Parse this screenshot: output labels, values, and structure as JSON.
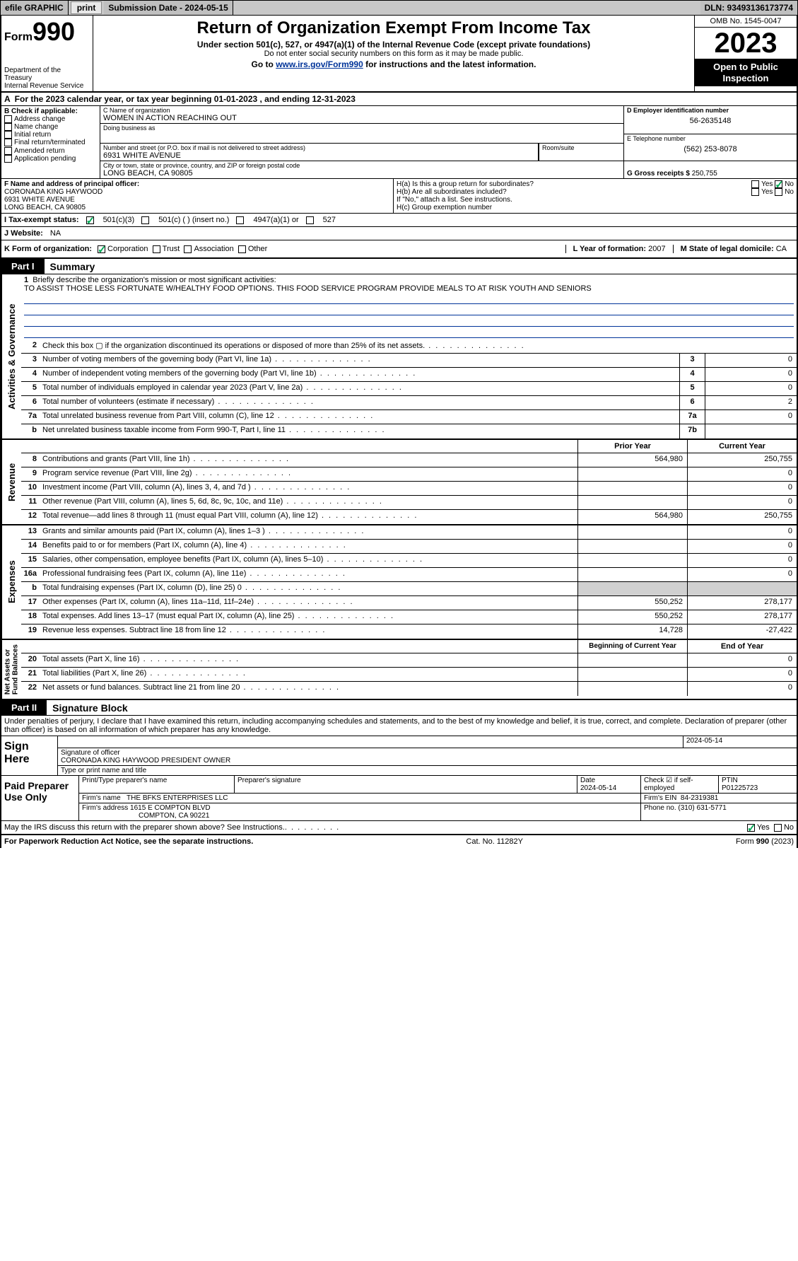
{
  "topbar": {
    "efile": "efile GRAPHIC",
    "print": "print",
    "sub_label": "Submission Date - 2024-05-15",
    "dln": "DLN: 93493136173774"
  },
  "header": {
    "form_word": "Form",
    "form_num": "990",
    "dept": "Department of the Treasury\nInternal Revenue Service",
    "title": "Return of Organization Exempt From Income Tax",
    "sub1": "Under section 501(c), 527, or 4947(a)(1) of the Internal Revenue Code (except private foundations)",
    "sub2": "Do not enter social security numbers on this form as it may be made public.",
    "sub3_pre": "Go to ",
    "sub3_link": "www.irs.gov/Form990",
    "sub3_post": " for instructions and the latest information.",
    "omb": "OMB No. 1545-0047",
    "year": "2023",
    "openpub": "Open to Public\nInspection"
  },
  "A": {
    "text": "For the 2023 calendar year, or tax year beginning 01-01-2023    , and ending 12-31-2023",
    "label": "A"
  },
  "B": {
    "label": "B Check if applicable:",
    "items": [
      "Address change",
      "Name change",
      "Initial return",
      "Final return/terminated",
      "Amended return",
      "Application pending"
    ]
  },
  "C": {
    "label": "C Name of organization",
    "name": "WOMEN IN ACTION REACHING OUT",
    "dba_label": "Doing business as",
    "dba": "",
    "street_label": "Number and street (or P.O. box if mail is not delivered to street address)",
    "street": "6931 WHITE AVENUE",
    "room_label": "Room/suite",
    "room": "",
    "city_label": "City or town, state or province, country, and ZIP or foreign postal code",
    "city": "LONG BEACH, CA  90805"
  },
  "D": {
    "label": "D Employer identification number",
    "ein": "56-2635148"
  },
  "E": {
    "label": "E Telephone number",
    "tel": "(562) 253-8078"
  },
  "G": {
    "label": "G Gross receipts $",
    "val": "250,755"
  },
  "F": {
    "label": "F  Name and address of principal officer:",
    "name": "CORONADA KING HAYWOOD",
    "street": "6931 WHITE AVENUE",
    "city": "LONG BEACH, CA  90805"
  },
  "H": {
    "a": "H(a)  Is this a group return for subordinates?",
    "a_yes": "Yes",
    "a_no": "No",
    "b": "H(b)  Are all subordinates included?",
    "b_yes": "Yes",
    "b_no": "No",
    "b_note": "If \"No,\" attach a list. See instructions.",
    "c": "H(c)  Group exemption number"
  },
  "I": {
    "label": "I    Tax-exempt status:",
    "o1": "501(c)(3)",
    "o2": "501(c) (   ) (insert no.)",
    "o3": "4947(a)(1) or",
    "o4": "527"
  },
  "J": {
    "label": "J    Website:",
    "val": "NA"
  },
  "K": {
    "label": "K Form of organization:",
    "o1": "Corporation",
    "o2": "Trust",
    "o3": "Association",
    "o4": "Other"
  },
  "L": {
    "label": "L Year of formation:",
    "val": "2007"
  },
  "M": {
    "label": "M State of legal domicile:",
    "val": "CA"
  },
  "partI": {
    "tab": "Part I",
    "title": "Summary"
  },
  "s1": {
    "num": "1",
    "label": "Briefly describe the organization's mission or most significant activities:",
    "text": "TO ASSIST THOSE LESS FORTUNATE W/HEALTHY FOOD OPTIONS. THIS FOOD SERVICE PROGRAM PROVIDE MEALS TO AT RISK YOUTH AND SENIORS"
  },
  "ag_rows": [
    {
      "n": "2",
      "t": "Check this box ▢ if the organization discontinued its operations or disposed of more than 25% of its net assets."
    },
    {
      "n": "3",
      "t": "Number of voting members of the governing body (Part VI, line 1a)",
      "k": "3",
      "v": "0"
    },
    {
      "n": "4",
      "t": "Number of independent voting members of the governing body (Part VI, line 1b)",
      "k": "4",
      "v": "0"
    },
    {
      "n": "5",
      "t": "Total number of individuals employed in calendar year 2023 (Part V, line 2a)",
      "k": "5",
      "v": "0"
    },
    {
      "n": "6",
      "t": "Total number of volunteers (estimate if necessary)",
      "k": "6",
      "v": "2"
    },
    {
      "n": "7a",
      "t": "Total unrelated business revenue from Part VIII, column (C), line 12",
      "k": "7a",
      "v": "0"
    },
    {
      "n": "b",
      "t": "Net unrelated business taxable income from Form 990-T, Part I, line 11",
      "k": "7b",
      "v": ""
    }
  ],
  "rev_hdr": {
    "c1": "Prior Year",
    "c2": "Current Year"
  },
  "rev_rows": [
    {
      "n": "8",
      "t": "Contributions and grants (Part VIII, line 1h)",
      "p": "564,980",
      "c": "250,755"
    },
    {
      "n": "9",
      "t": "Program service revenue (Part VIII, line 2g)",
      "p": "",
      "c": "0"
    },
    {
      "n": "10",
      "t": "Investment income (Part VIII, column (A), lines 3, 4, and 7d )",
      "p": "",
      "c": "0"
    },
    {
      "n": "11",
      "t": "Other revenue (Part VIII, column (A), lines 5, 6d, 8c, 9c, 10c, and 11e)",
      "p": "",
      "c": "0"
    },
    {
      "n": "12",
      "t": "Total revenue—add lines 8 through 11 (must equal Part VIII, column (A), line 12)",
      "p": "564,980",
      "c": "250,755"
    }
  ],
  "exp_rows": [
    {
      "n": "13",
      "t": "Grants and similar amounts paid (Part IX, column (A), lines 1–3 )",
      "p": "",
      "c": "0"
    },
    {
      "n": "14",
      "t": "Benefits paid to or for members (Part IX, column (A), line 4)",
      "p": "",
      "c": "0"
    },
    {
      "n": "15",
      "t": "Salaries, other compensation, employee benefits (Part IX, column (A), lines 5–10)",
      "p": "",
      "c": "0"
    },
    {
      "n": "16a",
      "t": "Professional fundraising fees (Part IX, column (A), line 11e)",
      "p": "",
      "c": "0"
    },
    {
      "n": "b",
      "t": "Total fundraising expenses (Part IX, column (D), line 25) 0",
      "p": "grey",
      "c": "grey"
    },
    {
      "n": "17",
      "t": "Other expenses (Part IX, column (A), lines 11a–11d, 11f–24e)",
      "p": "550,252",
      "c": "278,177"
    },
    {
      "n": "18",
      "t": "Total expenses. Add lines 13–17 (must equal Part IX, column (A), line 25)",
      "p": "550,252",
      "c": "278,177"
    },
    {
      "n": "19",
      "t": "Revenue less expenses. Subtract line 18 from line 12",
      "p": "14,728",
      "c": "-27,422"
    }
  ],
  "na_hdr": {
    "c1": "Beginning of Current Year",
    "c2": "End of Year"
  },
  "na_rows": [
    {
      "n": "20",
      "t": "Total assets (Part X, line 16)",
      "p": "",
      "c": "0"
    },
    {
      "n": "21",
      "t": "Total liabilities (Part X, line 26)",
      "p": "",
      "c": "0"
    },
    {
      "n": "22",
      "t": "Net assets or fund balances. Subtract line 21 from line 20",
      "p": "",
      "c": "0"
    }
  ],
  "vtabs": {
    "ag": "Activities & Governance",
    "rev": "Revenue",
    "exp": "Expenses",
    "na": "Net Assets or\nFund Balances"
  },
  "partII": {
    "tab": "Part II",
    "title": "Signature Block",
    "decl": "Under penalties of perjury, I declare that I have examined this return, including accompanying schedules and statements, and to the best of my knowledge and belief, it is true, correct, and complete. Declaration of preparer (other than officer) is based on all information of which preparer has any knowledge."
  },
  "sign": {
    "here": "Sign Here",
    "sig_label": "Signature of officer",
    "sig_name": "CORONADA KING HAYWOOD PRESIDENT OWNER",
    "type_label": "Type or print name and title",
    "date": "2024-05-14"
  },
  "paid": {
    "label": "Paid Preparer Use Only",
    "prep_name_label": "Print/Type preparer's name",
    "prep_sig_label": "Preparer's signature",
    "date_label": "Date",
    "date": "2024-05-14",
    "check_label": "Check ☑ if self-employed",
    "ptin_label": "PTIN",
    "ptin": "P01225723",
    "firm_name_label": "Firm's name",
    "firm_name": "THE BFKS ENTERPRISES LLC",
    "firm_ein_label": "Firm's EIN",
    "firm_ein": "84-2319381",
    "firm_addr_label": "Firm's address",
    "firm_addr1": "1615 E COMPTON BLVD",
    "firm_addr2": "COMPTON, CA  90221",
    "phone_label": "Phone no.",
    "phone": "(310) 631-5771"
  },
  "discuss": {
    "text": "May the IRS discuss this return with the preparer shown above? See Instructions.",
    "yes": "Yes",
    "no": "No"
  },
  "footer": {
    "l": "For Paperwork Reduction Act Notice, see the separate instructions.",
    "m": "Cat. No. 11282Y",
    "r": "Form 990 (2023)"
  },
  "labels": {
    "yes": "Yes",
    "no": "No"
  }
}
